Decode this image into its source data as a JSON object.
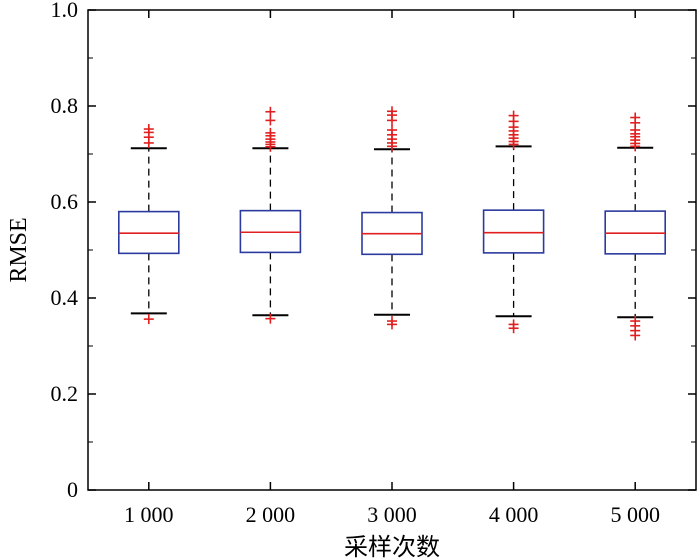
{
  "chart_data": {
    "type": "box",
    "title": "",
    "xlabel": "采样次数",
    "ylabel": "RMSE",
    "ylim": [
      0,
      1.0
    ],
    "yticks": [
      0,
      0.2,
      0.4,
      0.6,
      0.8,
      1.0
    ],
    "ytick_labels": [
      "0",
      "0.2",
      "0.4",
      "0.6",
      "0.8",
      "1.0"
    ],
    "categories": [
      "1 000",
      "2 000",
      "3 000",
      "4 000",
      "5 000"
    ],
    "grid": false,
    "colors": {
      "box": "#2b3a9e",
      "median": "#e02020",
      "whisker": "#000000",
      "outlier": "#e02020"
    },
    "boxes": [
      {
        "category": "1 000",
        "whisker_low": 0.368,
        "q1": 0.493,
        "median": 0.535,
        "q3": 0.58,
        "whisker_high": 0.712,
        "outliers": [
          0.356,
          0.723,
          0.735,
          0.745,
          0.752
        ]
      },
      {
        "category": "2 000",
        "whisker_low": 0.364,
        "q1": 0.495,
        "median": 0.537,
        "q3": 0.582,
        "whisker_high": 0.712,
        "outliers": [
          0.357,
          0.715,
          0.72,
          0.725,
          0.731,
          0.738,
          0.744,
          0.77,
          0.788
        ]
      },
      {
        "category": "3 000",
        "whisker_low": 0.365,
        "q1": 0.491,
        "median": 0.534,
        "q3": 0.578,
        "whisker_high": 0.71,
        "outliers": [
          0.345,
          0.352,
          0.716,
          0.723,
          0.731,
          0.74,
          0.75,
          0.77,
          0.781,
          0.789
        ]
      },
      {
        "category": "4 000",
        "whisker_low": 0.362,
        "q1": 0.494,
        "median": 0.536,
        "q3": 0.583,
        "whisker_high": 0.716,
        "outliers": [
          0.337,
          0.345,
          0.72,
          0.726,
          0.733,
          0.74,
          0.748,
          0.756,
          0.768,
          0.78
        ]
      },
      {
        "category": "5 000",
        "whisker_low": 0.36,
        "q1": 0.492,
        "median": 0.535,
        "q3": 0.581,
        "whisker_high": 0.713,
        "outliers": [
          0.322,
          0.332,
          0.342,
          0.352,
          0.716,
          0.722,
          0.729,
          0.736,
          0.742,
          0.75,
          0.765,
          0.776
        ]
      }
    ]
  }
}
